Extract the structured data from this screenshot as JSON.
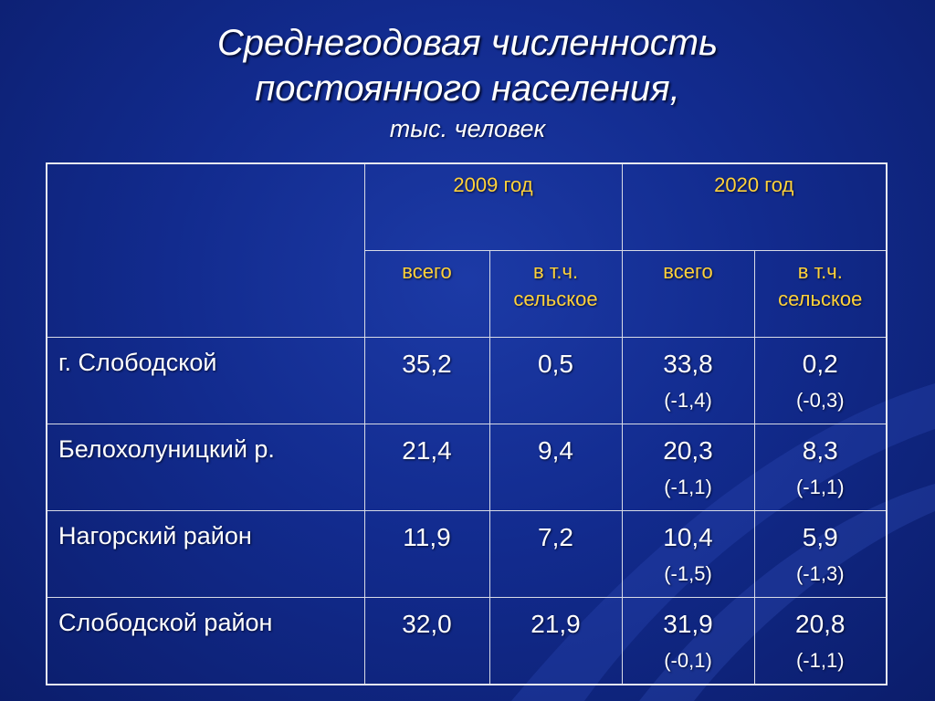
{
  "title": {
    "line1": "Среднегодовая численность",
    "line2": "постоянного населения,",
    "line3": "тыс. человек"
  },
  "table": {
    "years": [
      "2009 год",
      "2020 год"
    ],
    "subheaders": [
      "всего",
      "в т.ч. сельское",
      "всего",
      "в т.ч. сельское"
    ],
    "rows": [
      {
        "label": "г. Слободской",
        "v2009_total": "35,2",
        "v2009_rural": "0,5",
        "v2020_total": "33,8",
        "v2020_total_change": "(-1,4)",
        "v2020_rural": "0,2",
        "v2020_rural_change": "(-0,3)"
      },
      {
        "label": "Белохолуницкий р.",
        "v2009_total": "21,4",
        "v2009_rural": "9,4",
        "v2020_total": "20,3",
        "v2020_total_change": "(-1,1)",
        "v2020_rural": "8,3",
        "v2020_rural_change": "(-1,1)"
      },
      {
        "label": "Нагорский район",
        "v2009_total": "11,9",
        "v2009_rural": "7,2",
        "v2020_total": "10,4",
        "v2020_total_change": "(-1,5)",
        "v2020_rural": "5,9",
        "v2020_rural_change": "(-1,3)"
      },
      {
        "label": "Слободской район",
        "v2009_total": "32,0",
        "v2009_rural": "21,9",
        "v2020_total": "31,9",
        "v2020_total_change": "(-0,1)",
        "v2020_rural": "20,8",
        "v2020_rural_change": "(-1,1)"
      }
    ]
  },
  "colors": {
    "background": "#122b8e",
    "header_text": "#ffd23a",
    "body_text": "#ffffff",
    "grid_lines": "#d8dbe6"
  }
}
